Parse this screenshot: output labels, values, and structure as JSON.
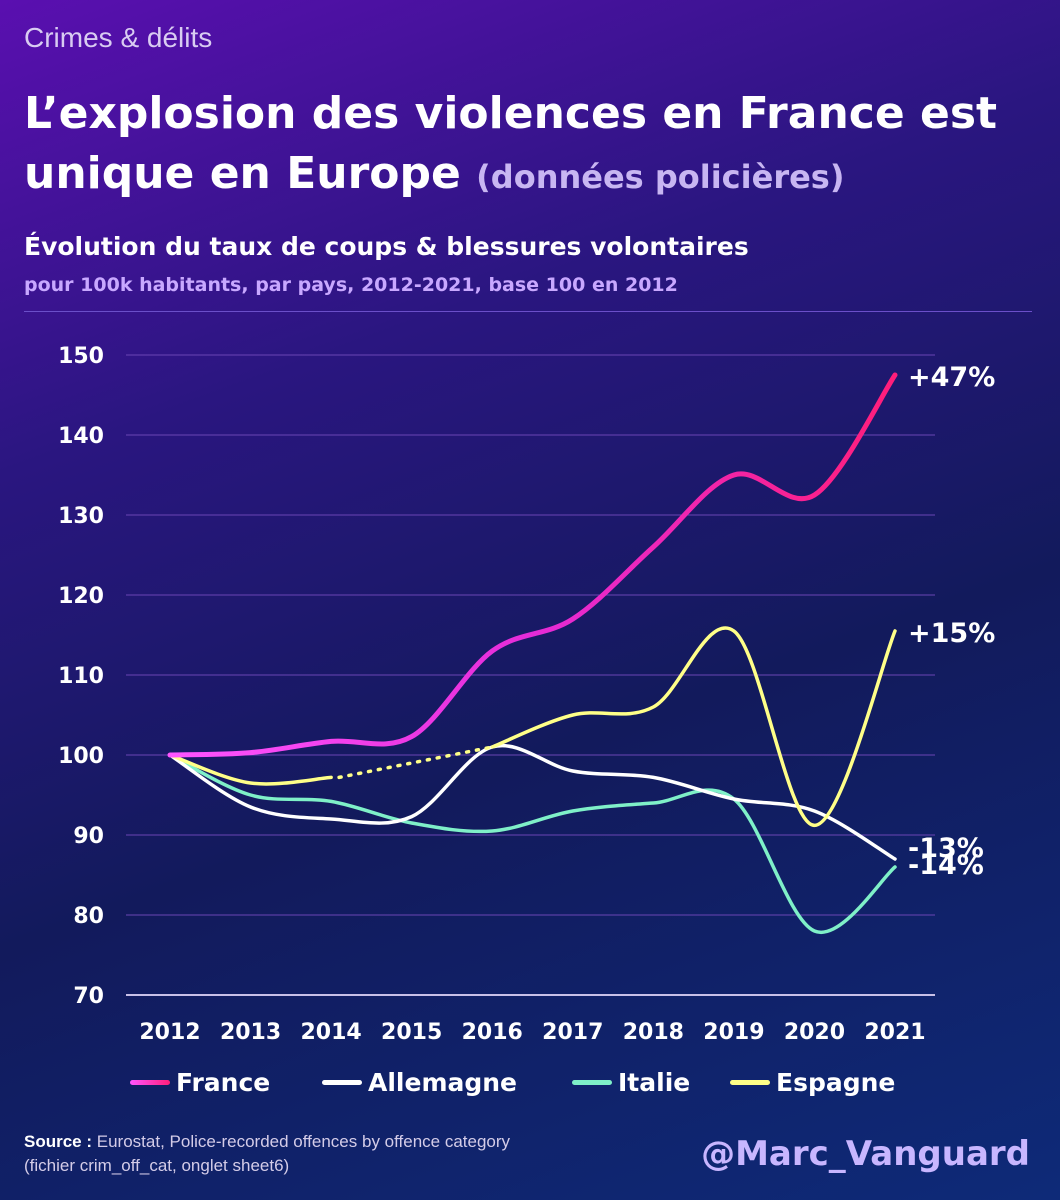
{
  "kicker": "Crimes & délits",
  "title_main": "L’explosion des violences en France est unique en Europe",
  "title_sub": "(données policières)",
  "chart_title": "Évolution du taux de coups & blessures volontaires",
  "chart_subtitle": "pour 100k habitants, par pays, 2012-2021, base 100 en 2012",
  "source_label": "Source :",
  "source_line1": "Eurostat, Police-recorded offences by offence category",
  "source_line2": "(fichier crim_off_cat, onglet sheet6)",
  "handle": "@Marc_Vanguard",
  "chart_data": {
    "type": "line",
    "title": "Évolution du taux de coups & blessures volontaires",
    "subtitle": "pour 100k habitants, par pays, 2012-2021, base 100 en 2012",
    "x": [
      "2012",
      "2013",
      "2014",
      "2015",
      "2016",
      "2017",
      "2018",
      "2019",
      "2020",
      "2021"
    ],
    "yticks": [
      "70",
      "80",
      "90",
      "100",
      "110",
      "120",
      "130",
      "140",
      "150"
    ],
    "ylim": [
      70,
      150
    ],
    "grid": true,
    "series": [
      {
        "name": "France",
        "color": "#ff2ea8",
        "values": [
          100,
          100.3,
          101.7,
          102.3,
          113,
          117,
          126,
          135,
          132.5,
          147.5
        ],
        "end_label": "+47%"
      },
      {
        "name": "Allemagne",
        "color": "#ffffff",
        "values": [
          100,
          93.5,
          92,
          92.3,
          101,
          98,
          97.2,
          94.5,
          93,
          87
        ],
        "end_label": "-13%"
      },
      {
        "name": "Italie",
        "color": "#7ff0c8",
        "values": [
          100,
          95,
          94.2,
          91.5,
          90.5,
          93,
          94,
          94.5,
          78,
          86
        ],
        "end_label": "-14%"
      },
      {
        "name": "Espagne",
        "color": "#ffff88",
        "values": [
          100,
          96.5,
          97.2,
          99,
          101,
          105,
          106,
          115.5,
          91.2,
          115.5
        ],
        "end_label": "+15%",
        "gap_dotted": [
          2,
          4
        ]
      }
    ]
  }
}
